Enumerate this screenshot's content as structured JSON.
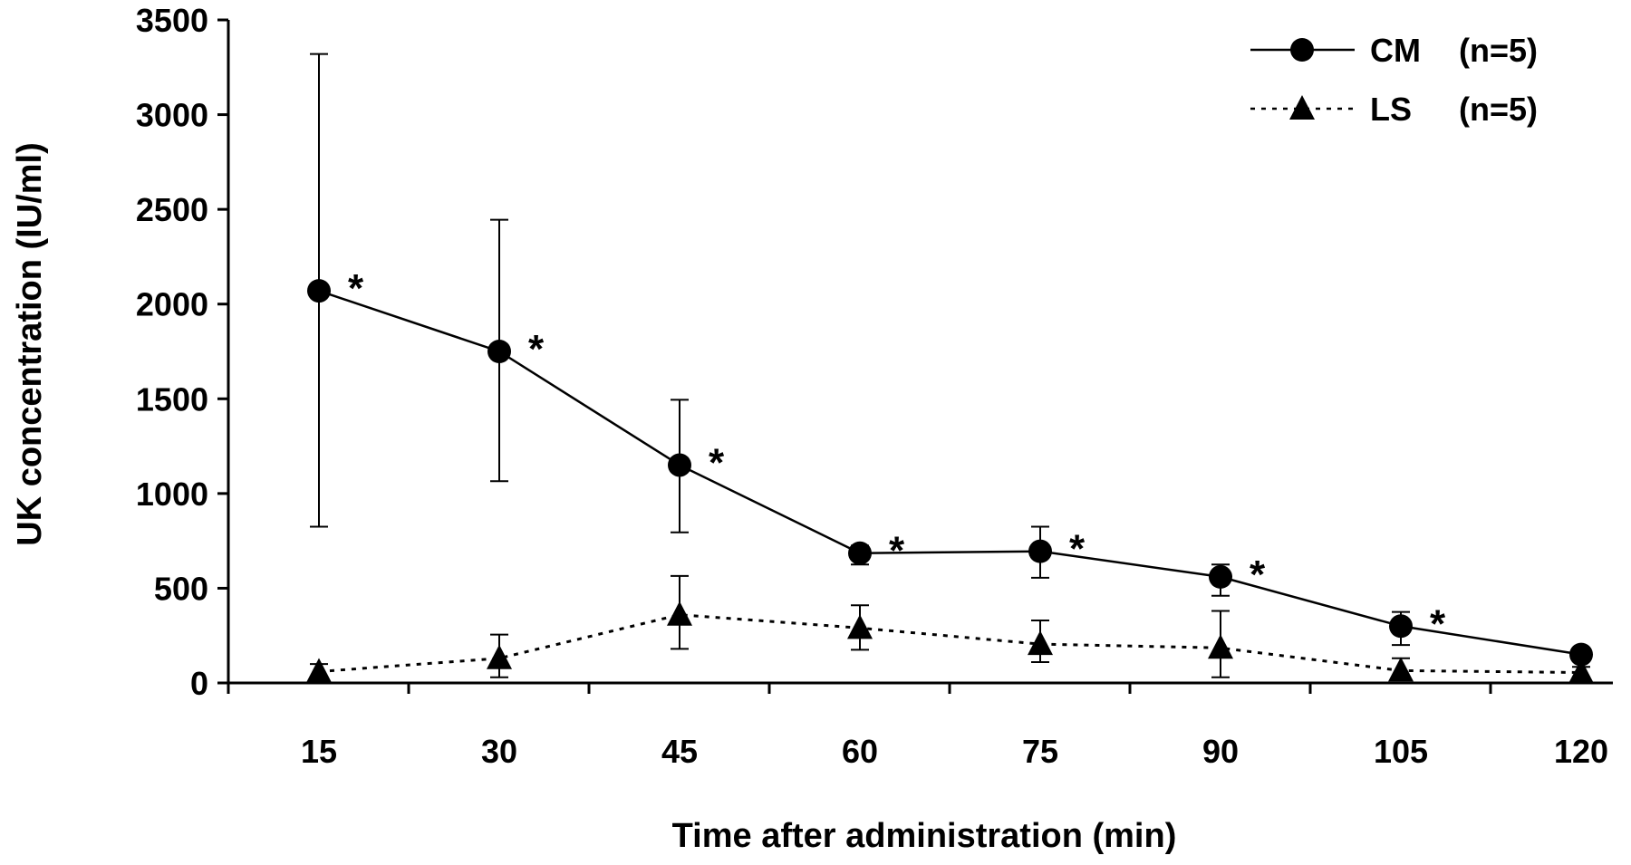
{
  "chart_data": {
    "type": "line",
    "title": "",
    "xlabel": "Time after administration (min)",
    "ylabel": "UK concentration (IU/ml)",
    "x": [
      15,
      30,
      45,
      60,
      75,
      90,
      105,
      120
    ],
    "x_tick_labels": [
      "15",
      "30",
      "45",
      "60",
      "75",
      "90",
      "105",
      "120"
    ],
    "xlim": [
      0,
      120
    ],
    "ylim": [
      0,
      3500
    ],
    "y_ticks": [
      0,
      500,
      1000,
      1500,
      2000,
      2500,
      3000,
      3500
    ],
    "y_tick_labels": [
      "0",
      "500",
      "1000",
      "1500",
      "2000",
      "2500",
      "3000",
      "3500"
    ],
    "grid": false,
    "legend_position": "top-right",
    "series": [
      {
        "name": "CM",
        "n_label": "(n=5)",
        "line_style": "solid",
        "marker": "circle",
        "values": [
          2070,
          1750,
          1150,
          685,
          695,
          560,
          300,
          150
        ],
        "error_upper": [
          3320,
          2445,
          1495,
          725,
          825,
          625,
          375,
          175
        ],
        "error_lower": [
          825,
          1065,
          795,
          625,
          555,
          460,
          200,
          130
        ],
        "annotations": [
          "*",
          "*",
          "*",
          "*",
          "*",
          "*",
          "*",
          ""
        ]
      },
      {
        "name": "LS",
        "n_label": "(n=5)",
        "line_style": "dotted",
        "marker": "triangle",
        "values": [
          60,
          130,
          360,
          290,
          205,
          185,
          65,
          55
        ],
        "error_upper": [
          100,
          255,
          565,
          410,
          330,
          380,
          130,
          85
        ],
        "error_lower": [
          30,
          30,
          180,
          175,
          110,
          30,
          30,
          30
        ]
      }
    ],
    "colors": {
      "ink": "#000000",
      "background": "#ffffff"
    }
  }
}
